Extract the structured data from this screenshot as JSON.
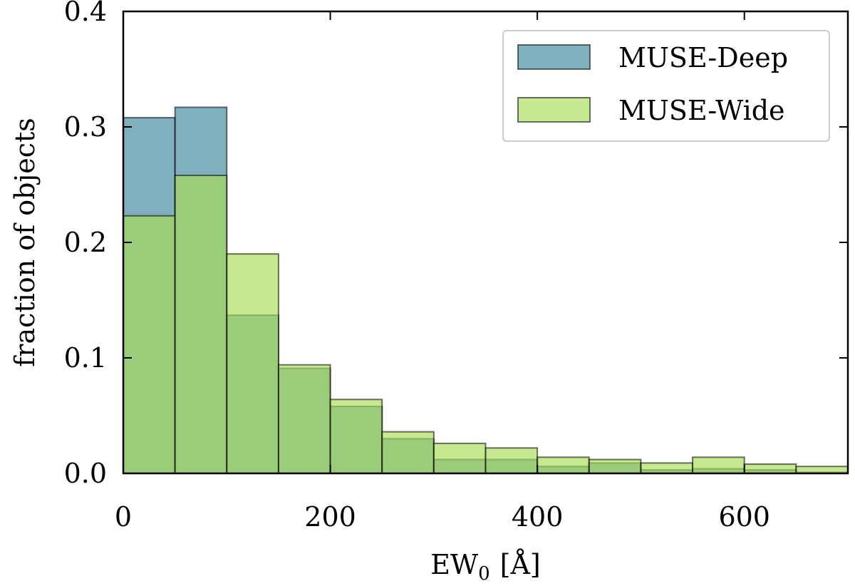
{
  "chart_data": {
    "type": "bar",
    "subtype": "overlaid-histogram",
    "title": "",
    "xlabel": "EW",
    "xlabel_sub": "0",
    "xlabel_unit": "[Å]",
    "ylabel": "fraction of objects",
    "xlim": [
      0,
      700
    ],
    "ylim": [
      0,
      0.4
    ],
    "xticks": [
      0,
      200,
      400,
      600
    ],
    "xtick_labels": [
      "0",
      "200",
      "400",
      "600"
    ],
    "yticks": [
      0.0,
      0.1,
      0.2,
      0.3,
      0.4
    ],
    "ytick_labels": [
      "0.0",
      "0.1",
      "0.2",
      "0.3",
      "0.4"
    ],
    "bin_edges": [
      0,
      50,
      100,
      150,
      200,
      250,
      300,
      350,
      400,
      450,
      500,
      550,
      600,
      650,
      700
    ],
    "grid": false,
    "legend_position": "top-right",
    "series": [
      {
        "name": "MUSE-Deep",
        "color": "#4a8fa3",
        "values": [
          0.308,
          0.317,
          0.137,
          0.091,
          0.058,
          0.03,
          0.012,
          0.012,
          0.006,
          0.009,
          0.003,
          0.004,
          0.003,
          0.001
        ]
      },
      {
        "name": "MUSE-Wide",
        "color": "#a8dc55",
        "values": [
          0.223,
          0.258,
          0.19,
          0.094,
          0.064,
          0.036,
          0.026,
          0.022,
          0.014,
          0.012,
          0.009,
          0.014,
          0.008,
          0.006
        ]
      }
    ]
  }
}
